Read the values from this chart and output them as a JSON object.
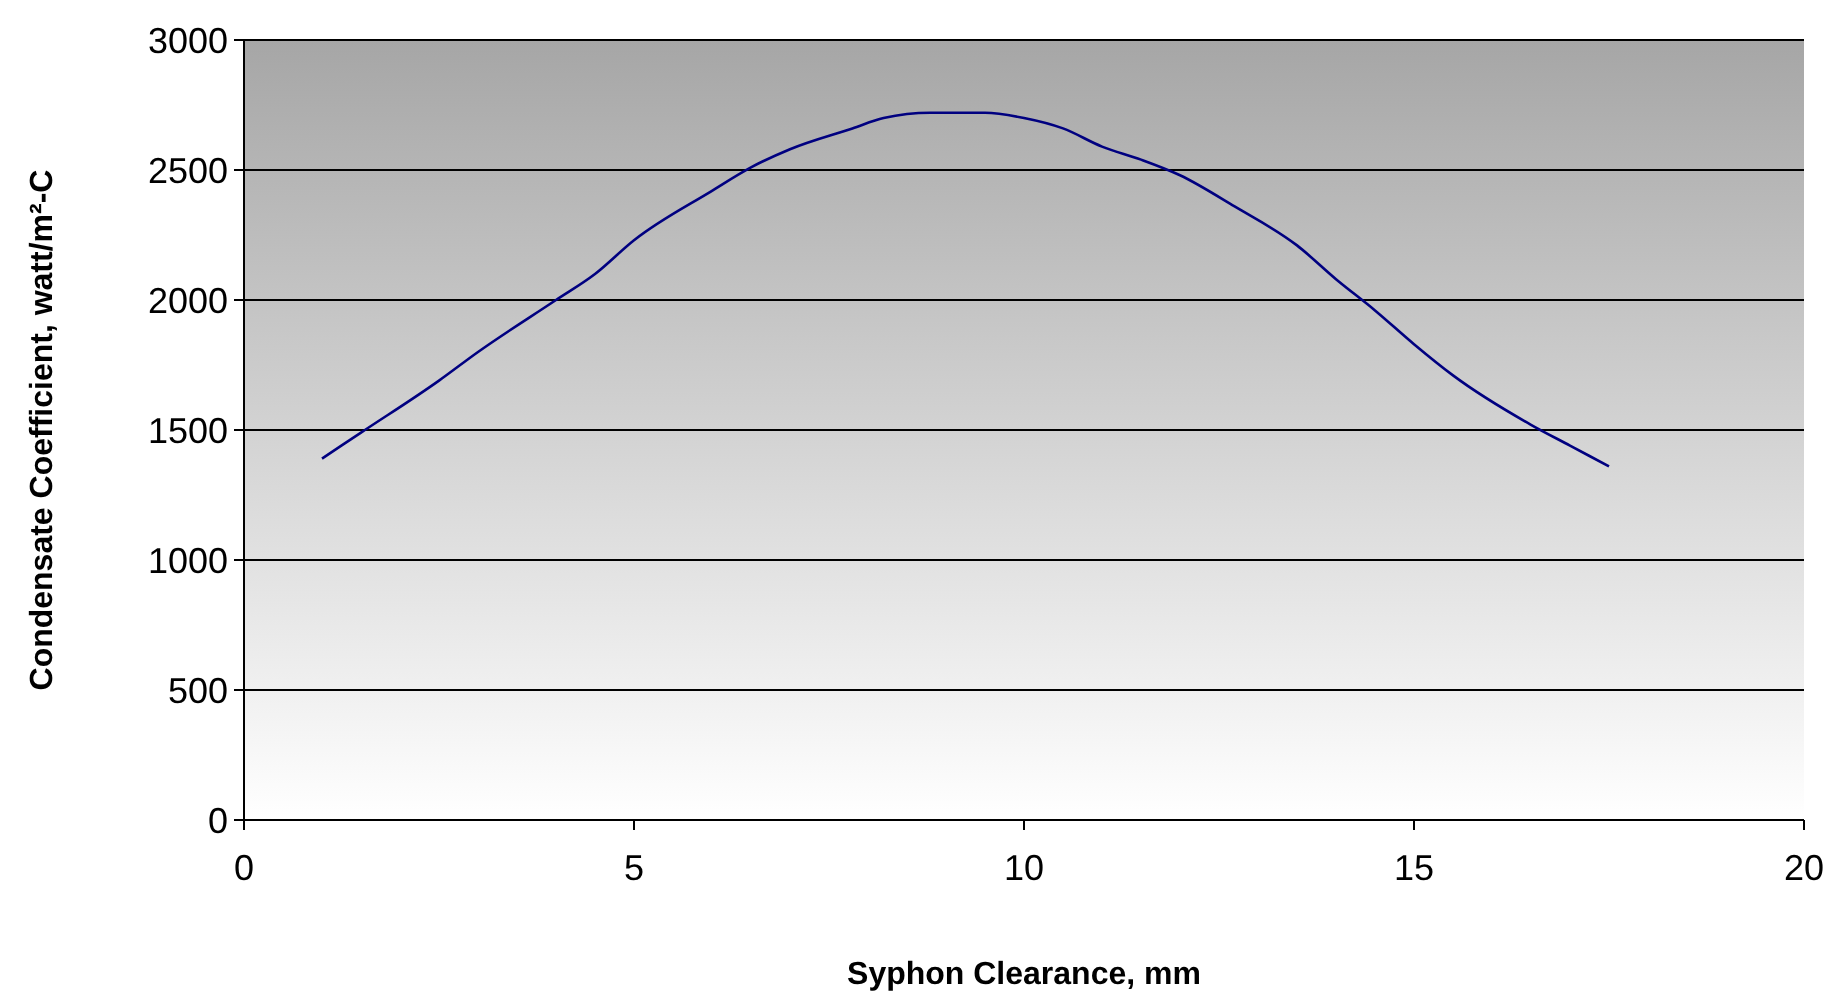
{
  "chart_data": {
    "type": "line",
    "xlabel": "Syphon Clearance, mm",
    "ylabel": "Condensate Coefficient, watt/m²-C",
    "x": [
      1,
      1.5,
      2.5,
      3,
      4,
      4.5,
      5,
      6,
      6.5,
      7,
      7.8,
      8.2,
      8.8,
      9.5,
      10,
      10.5,
      11,
      11.5,
      12,
      12.7,
      13.5,
      14,
      14.5,
      15,
      15.5,
      16.5,
      17,
      17.5
    ],
    "series": [
      {
        "color": "#000080",
        "values": [
          1390,
          1490,
          1690,
          1800,
          2000,
          2100,
          2230,
          2420,
          2510,
          2580,
          2660,
          2700,
          2720,
          2720,
          2700,
          2660,
          2590,
          2540,
          2480,
          2360,
          2210,
          2080,
          1960,
          1830,
          1710,
          1520,
          1440,
          1360
        ]
      }
    ],
    "xlim": [
      0,
      20
    ],
    "xticks": [
      0,
      5,
      10,
      15,
      20
    ],
    "ylim": [
      0,
      3000
    ],
    "yticks": [
      0,
      500,
      1000,
      1500,
      2000,
      2500,
      3000
    ],
    "grid": "y",
    "marker": "none",
    "line_style": "solid"
  }
}
